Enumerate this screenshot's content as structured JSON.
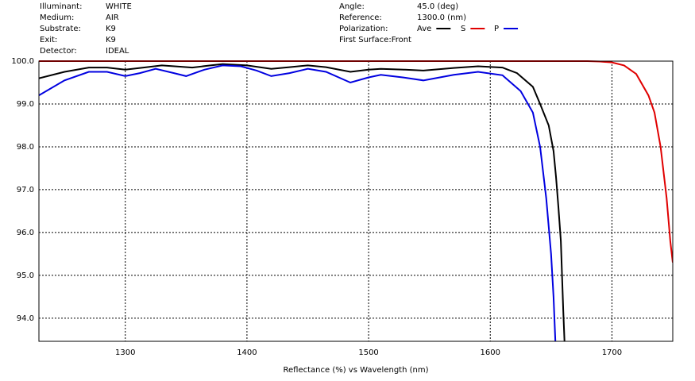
{
  "chart_data": {
    "type": "line",
    "info_left": [
      {
        "label": "Illuminant:",
        "value": "WHITE"
      },
      {
        "label": "Medium:",
        "value": "AIR"
      },
      {
        "label": "Substrate:",
        "value": "K9"
      },
      {
        "label": "Exit:",
        "value": "K9"
      },
      {
        "label": "Detector:",
        "value": "IDEAL"
      }
    ],
    "info_right": [
      {
        "label": "Angle:",
        "value": "45.0 (deg)"
      },
      {
        "label": "Reference:",
        "value": "1300.0 (nm)"
      }
    ],
    "first_surface": "First Surface:Front",
    "legend_title": "Polarization:",
    "xlabel": "Reflectance (%)  vs  Wavelength (nm)",
    "xlim": [
      1229,
      1750
    ],
    "xticks": [
      1300,
      1400,
      1500,
      1600,
      1700
    ],
    "ylim": [
      93.46,
      100
    ],
    "yticks": [
      {
        "value": 94,
        "label": "94.0"
      },
      {
        "value": 95,
        "label": "95.0"
      },
      {
        "value": 96,
        "label": "96.0"
      },
      {
        "value": 97,
        "label": "97.0"
      },
      {
        "value": 98,
        "label": "98.0"
      },
      {
        "value": 99,
        "label": "99.0"
      },
      {
        "value": 100,
        "label": "100.0"
      }
    ],
    "grid": true,
    "series": [
      {
        "name": "Ave",
        "color": "#000000",
        "x": [
          1229,
          1250,
          1270,
          1285,
          1300,
          1315,
          1330,
          1345,
          1355,
          1370,
          1380,
          1400,
          1420,
          1435,
          1450,
          1465,
          1485,
          1500,
          1510,
          1530,
          1545,
          1570,
          1590,
          1610,
          1622,
          1635,
          1641,
          1648,
          1652,
          1654,
          1656,
          1658,
          1659,
          1660,
          1661
        ],
        "values": [
          99.6,
          99.75,
          99.85,
          99.85,
          99.8,
          99.85,
          99.9,
          99.87,
          99.85,
          99.9,
          99.93,
          99.9,
          99.82,
          99.86,
          99.9,
          99.86,
          99.75,
          99.8,
          99.82,
          99.8,
          99.78,
          99.84,
          99.88,
          99.85,
          99.72,
          99.4,
          99.0,
          98.5,
          97.9,
          97.3,
          96.6,
          95.8,
          95.0,
          94.2,
          93.46
        ]
      },
      {
        "name": "S",
        "color": "#e00000",
        "x": [
          1229,
          1300,
          1400,
          1500,
          1600,
          1680,
          1690,
          1700,
          1710,
          1720,
          1730,
          1735,
          1740,
          1745,
          1748,
          1750
        ],
        "values": [
          100,
          100,
          100,
          100,
          100,
          100,
          99.99,
          99.97,
          99.9,
          99.7,
          99.2,
          98.8,
          98.0,
          96.8,
          95.8,
          95.3
        ]
      },
      {
        "name": "P",
        "color": "#0000e0",
        "x": [
          1229,
          1250,
          1270,
          1285,
          1300,
          1312,
          1325,
          1340,
          1350,
          1365,
          1380,
          1395,
          1408,
          1420,
          1435,
          1450,
          1465,
          1485,
          1500,
          1510,
          1528,
          1545,
          1570,
          1590,
          1610,
          1625,
          1635,
          1641,
          1646,
          1650,
          1652,
          1653.5
        ],
        "values": [
          99.2,
          99.55,
          99.75,
          99.75,
          99.65,
          99.72,
          99.82,
          99.72,
          99.65,
          99.8,
          99.9,
          99.88,
          99.78,
          99.65,
          99.72,
          99.82,
          99.75,
          99.5,
          99.62,
          99.68,
          99.62,
          99.55,
          99.68,
          99.75,
          99.67,
          99.3,
          98.8,
          98.0,
          96.8,
          95.5,
          94.5,
          93.46
        ]
      }
    ]
  }
}
